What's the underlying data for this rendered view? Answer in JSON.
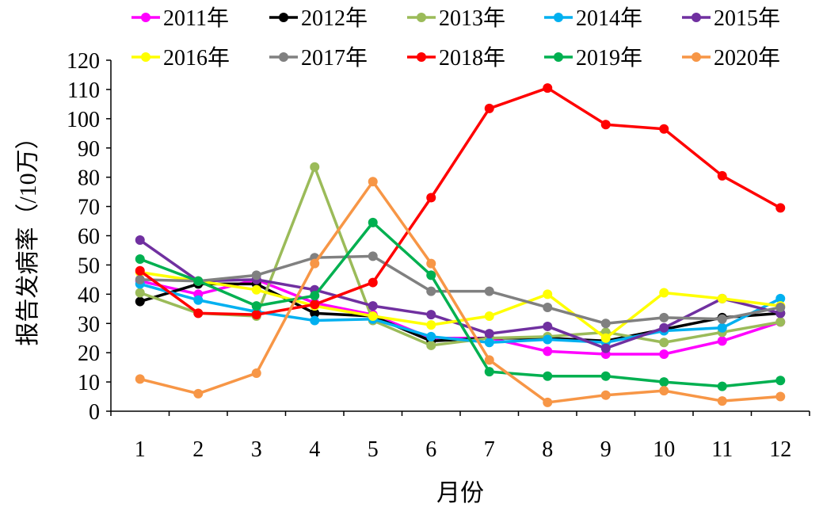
{
  "chart_data": {
    "type": "line",
    "xlabel": "月份",
    "ylabel": "报告发病率（/10万）",
    "categories": [
      "1",
      "2",
      "3",
      "4",
      "5",
      "6",
      "7",
      "8",
      "9",
      "10",
      "11",
      "12"
    ],
    "ylim": [
      0,
      120
    ],
    "yticks": [
      0,
      10,
      20,
      30,
      40,
      50,
      60,
      70,
      80,
      90,
      100,
      110,
      120
    ],
    "grid": false,
    "legend_position": "top",
    "series": [
      {
        "name": "2011年",
        "color": "#ff00ff",
        "values": [
          44.5,
          40,
          45,
          37,
          33,
          25,
          25,
          20.5,
          19.5,
          19.5,
          24,
          30.5
        ]
      },
      {
        "name": "2012年",
        "color": "#000000",
        "values": [
          37.5,
          43.5,
          43.5,
          33.5,
          32.5,
          24,
          25,
          25,
          24,
          28,
          32,
          33.5
        ]
      },
      {
        "name": "2013年",
        "color": "#9bbb59",
        "values": [
          40.5,
          33.5,
          32.5,
          83.5,
          31,
          22.5,
          25,
          25.5,
          27,
          23.5,
          27,
          30.5
        ]
      },
      {
        "name": "2014年",
        "color": "#00b0f0",
        "values": [
          43.5,
          38,
          34,
          31,
          31.5,
          25.5,
          23.5,
          24.5,
          23.5,
          27.5,
          28.5,
          38.5
        ]
      },
      {
        "name": "2015年",
        "color": "#7030a0",
        "values": [
          58.5,
          44.5,
          45,
          41.5,
          36,
          33,
          26.5,
          29,
          21.5,
          28.5,
          38.5,
          33.5
        ]
      },
      {
        "name": "2016年",
        "color": "#ffff00",
        "values": [
          47.5,
          44.5,
          41.5,
          36,
          32.5,
          29.5,
          32.5,
          40,
          25,
          40.5,
          38.5,
          36
        ]
      },
      {
        "name": "2017年",
        "color": "#808080",
        "values": [
          45,
          44.5,
          46.5,
          52.5,
          53,
          41,
          41,
          35.5,
          30,
          32,
          31.5,
          35.5
        ]
      },
      {
        "name": "2018年",
        "color": "#ff0000",
        "values": [
          48,
          33.5,
          33,
          36.5,
          44,
          73,
          103.5,
          110.5,
          98,
          96.5,
          80.5,
          69.5
        ]
      },
      {
        "name": "2019年",
        "color": "#00b050",
        "values": [
          52,
          44.5,
          36,
          39.5,
          64.5,
          46.5,
          13.5,
          12,
          12,
          10,
          8.5,
          10.5
        ]
      },
      {
        "name": "2020年",
        "color": "#f79646",
        "values": [
          11,
          6,
          13,
          50.5,
          78.5,
          50.5,
          17.5,
          3,
          5.5,
          7,
          3.5,
          5
        ]
      }
    ]
  }
}
